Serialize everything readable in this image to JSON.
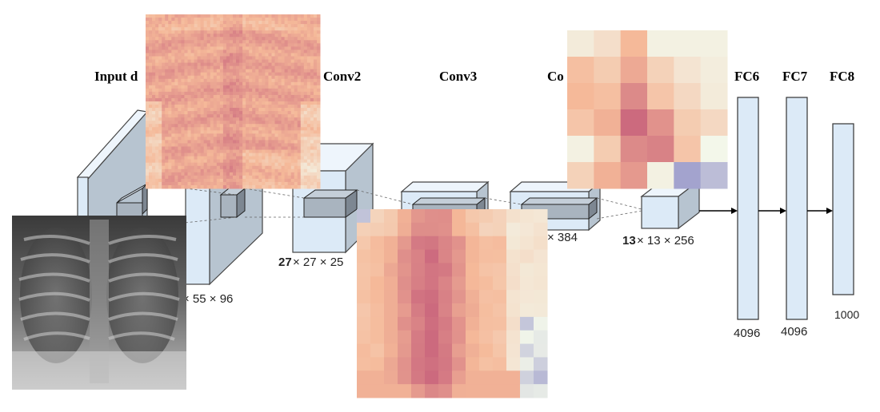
{
  "layers": {
    "input": "Input d",
    "conv2": "Conv2",
    "conv3": "Conv3",
    "conv4": "Co",
    "fc6": "FC6",
    "fc7": "FC7",
    "fc8": "FC8"
  },
  "dims": {
    "conv1_rest": "× 55 × 96",
    "conv2_bold": "27",
    "conv2_rest": "× 27 × 25",
    "conv4_rest": "× 384",
    "conv5_bold": "13",
    "conv5_rest": "× 13 × 256",
    "fc6": "4096",
    "fc7": "4096",
    "fc8": "1000"
  },
  "colors": {
    "block": "#dceaf7",
    "heat_low": "#f3f7ea",
    "heat_mid": "#f5b999",
    "heat_high": "#cc6a7e",
    "heat_cold": "#8f8ec7"
  },
  "images": {
    "xray": "chest-xray-image",
    "heatmap_large": "saliency-heatmap-conv1",
    "heatmap_mid": "saliency-heatmap-conv3",
    "heatmap_small": "saliency-heatmap-conv5"
  }
}
